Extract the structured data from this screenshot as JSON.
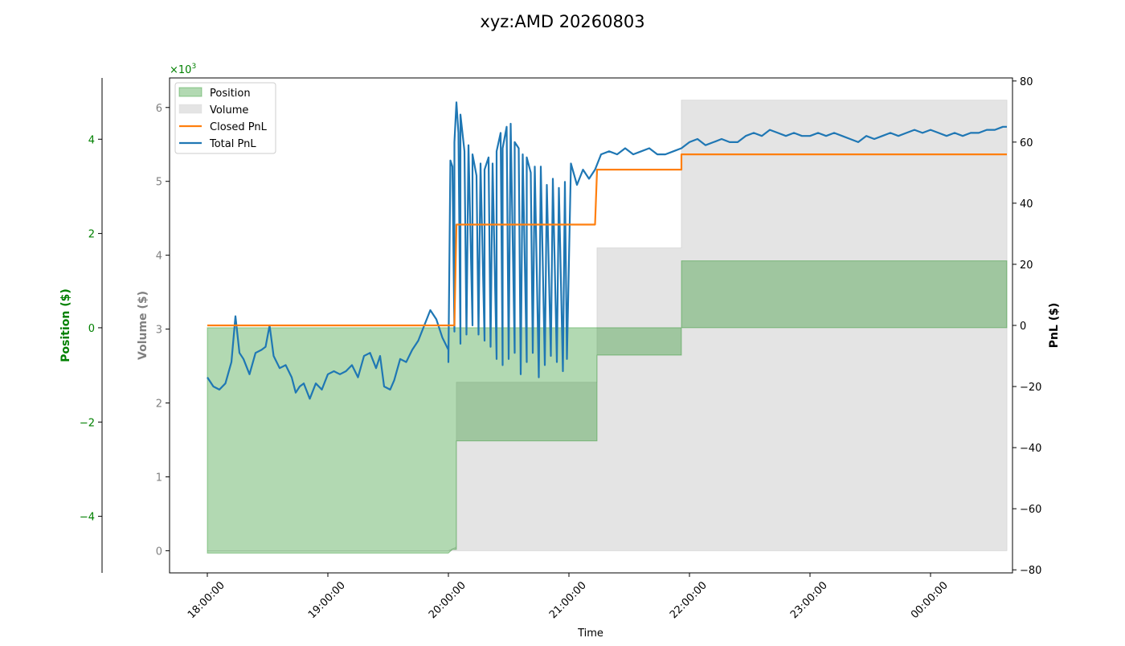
{
  "chart_data": {
    "type": "line",
    "title": "xyz:AMD 20260803",
    "xlabel": "Time",
    "x_ticks": [
      "18:00:00",
      "19:00:00",
      "20:00:00",
      "21:00:00",
      "22:00:00",
      "23:00:00",
      "00:00:00"
    ],
    "x_range": [
      "18:00",
      "00:38"
    ],
    "volume_axis": {
      "label": "Volume ($)",
      "exponent_label": "×10^3",
      "ylim": [
        -0.3,
        6.4
      ],
      "ticks": [
        0,
        1,
        2,
        3,
        4,
        5,
        6
      ],
      "color": "#808080"
    },
    "position_axis": {
      "label": "Position ($)",
      "exponent_label": "×10^3",
      "ylim": [
        -5.2,
        5.3
      ],
      "ticks": [
        -4,
        -2,
        0,
        2,
        4
      ],
      "color": "#008000"
    },
    "pnl_axis": {
      "label": "PnL ($)",
      "ylim": [
        -81,
        81
      ],
      "ticks": [
        -80,
        -60,
        -40,
        -20,
        0,
        20,
        40,
        60,
        80
      ],
      "color": "#000000"
    },
    "legend": {
      "placement": "top-left",
      "entries": [
        {
          "label": "Position",
          "kind": "patch",
          "color": "#b2d8b2"
        },
        {
          "label": "Volume",
          "kind": "patch",
          "color": "#e4e4e4"
        },
        {
          "label": "Closed PnL",
          "kind": "line",
          "color": "#ff7f0e"
        },
        {
          "label": "Total PnL",
          "kind": "line",
          "color": "#1f77b4"
        }
      ]
    },
    "series": [
      {
        "name": "Position",
        "axis": "position",
        "kind": "area",
        "color": "#b2d8b2",
        "points": [
          [
            "18:00",
            -4.78
          ],
          [
            "20:00",
            -4.78
          ],
          [
            "20:02",
            -4.7
          ],
          [
            "20:04",
            -4.7
          ],
          [
            "20:04",
            -2.4
          ],
          [
            "21:14",
            -2.4
          ],
          [
            "21:14",
            -0.58
          ],
          [
            "21:56",
            -0.58
          ],
          [
            "21:56",
            1.42
          ],
          [
            "00:38",
            1.42
          ]
        ]
      },
      {
        "name": "Volume",
        "axis": "volume",
        "kind": "area",
        "color": "#e4e4e4",
        "points": [
          [
            "18:00",
            0.0
          ],
          [
            "20:00",
            0.0
          ],
          [
            "20:04",
            0.05
          ],
          [
            "20:04",
            2.28
          ],
          [
            "21:14",
            2.28
          ],
          [
            "21:14",
            4.1
          ],
          [
            "21:56",
            4.1
          ],
          [
            "21:56",
            6.1
          ],
          [
            "00:38",
            6.1
          ]
        ]
      },
      {
        "name": "Closed PnL",
        "axis": "pnl",
        "kind": "step",
        "color": "#ff7f0e",
        "points": [
          [
            "18:00",
            0
          ],
          [
            "20:03",
            0
          ],
          [
            "20:04",
            33
          ],
          [
            "21:13",
            33
          ],
          [
            "21:14",
            51
          ],
          [
            "21:56",
            51
          ],
          [
            "21:56",
            56
          ],
          [
            "00:38",
            56
          ]
        ]
      },
      {
        "name": "Total PnL",
        "axis": "pnl",
        "kind": "line",
        "color": "#1f77b4",
        "points": [
          [
            "18:00",
            -17
          ],
          [
            "18:03",
            -20
          ],
          [
            "18:06",
            -21
          ],
          [
            "18:09",
            -19
          ],
          [
            "18:12",
            -12
          ],
          [
            "18:14",
            3
          ],
          [
            "18:16",
            -9
          ],
          [
            "18:18",
            -11
          ],
          [
            "18:21",
            -16
          ],
          [
            "18:24",
            -9
          ],
          [
            "18:27",
            -8
          ],
          [
            "18:29",
            -7
          ],
          [
            "18:31",
            0
          ],
          [
            "18:33",
            -10
          ],
          [
            "18:36",
            -14
          ],
          [
            "18:39",
            -13
          ],
          [
            "18:42",
            -17
          ],
          [
            "18:44",
            -22
          ],
          [
            "18:46",
            -20
          ],
          [
            "18:48",
            -19
          ],
          [
            "18:51",
            -24
          ],
          [
            "18:54",
            -19
          ],
          [
            "18:57",
            -21
          ],
          [
            "19:00",
            -16
          ],
          [
            "19:03",
            -15
          ],
          [
            "19:06",
            -16
          ],
          [
            "19:09",
            -15
          ],
          [
            "19:12",
            -13
          ],
          [
            "19:15",
            -17
          ],
          [
            "19:18",
            -10
          ],
          [
            "19:21",
            -9
          ],
          [
            "19:24",
            -14
          ],
          [
            "19:26",
            -10
          ],
          [
            "19:28",
            -20
          ],
          [
            "19:31",
            -21
          ],
          [
            "19:33",
            -18
          ],
          [
            "19:36",
            -11
          ],
          [
            "19:39",
            -12
          ],
          [
            "19:42",
            -8
          ],
          [
            "19:45",
            -5
          ],
          [
            "19:48",
            0
          ],
          [
            "19:51",
            5
          ],
          [
            "19:54",
            2
          ],
          [
            "19:57",
            -4
          ],
          [
            "20:00",
            -8
          ],
          [
            "20:03",
            -2
          ],
          [
            "20:06",
            -6
          ],
          [
            "20:09",
            -3
          ],
          [
            "20:12",
            0
          ],
          [
            "20:15",
            -3
          ],
          [
            "20:18",
            -5
          ],
          [
            "20:21",
            -7
          ],
          [
            "20:24",
            -11
          ],
          [
            "20:27",
            -13
          ],
          [
            "20:30",
            -11
          ],
          [
            "20:33",
            -9
          ],
          [
            "20:36",
            -16
          ],
          [
            "20:39",
            -12
          ],
          [
            "20:42",
            -9
          ],
          [
            "20:45",
            -17
          ],
          [
            "20:48",
            -13
          ],
          [
            "20:51",
            -10
          ],
          [
            "20:54",
            -12
          ],
          [
            "20:57",
            -15
          ],
          [
            "20:59",
            -11
          ],
          [
            "20:00",
            -12
          ],
          [
            "20:01",
            54
          ],
          [
            "20:02",
            52
          ],
          [
            "20:03",
            60
          ],
          [
            "20:04",
            73
          ],
          [
            "20:05",
            63
          ],
          [
            "20:06",
            69
          ],
          [
            "20:08",
            57
          ],
          [
            "20:10",
            59
          ],
          [
            "20:12",
            56
          ],
          [
            "20:14",
            49
          ],
          [
            "20:16",
            53
          ],
          [
            "20:18",
            51
          ],
          [
            "20:20",
            55
          ],
          [
            "20:22",
            53
          ],
          [
            "20:24",
            57
          ],
          [
            "20:26",
            63
          ],
          [
            "20:27",
            58
          ],
          [
            "20:29",
            65
          ],
          [
            "20:31",
            66
          ],
          [
            "20:33",
            60
          ],
          [
            "20:35",
            58
          ],
          [
            "20:37",
            56
          ],
          [
            "20:39",
            55
          ],
          [
            "20:41",
            50
          ],
          [
            "20:43",
            52
          ],
          [
            "20:46",
            52
          ],
          [
            "20:49",
            46
          ],
          [
            "20:52",
            48
          ],
          [
            "20:55",
            45
          ],
          [
            "20:58",
            47
          ],
          [
            "21:01",
            53
          ],
          [
            "21:04",
            46
          ],
          [
            "21:07",
            51
          ],
          [
            "21:10",
            48
          ],
          [
            "21:13",
            51
          ],
          [
            "21:16",
            56
          ],
          [
            "21:20",
            57
          ],
          [
            "21:24",
            56
          ],
          [
            "21:28",
            58
          ],
          [
            "21:32",
            56
          ],
          [
            "21:36",
            57
          ],
          [
            "21:40",
            58
          ],
          [
            "21:44",
            56
          ],
          [
            "21:48",
            56
          ],
          [
            "21:52",
            57
          ],
          [
            "21:56",
            58
          ],
          [
            "22:00",
            60
          ],
          [
            "22:04",
            61
          ],
          [
            "22:08",
            59
          ],
          [
            "22:12",
            60
          ],
          [
            "22:16",
            61
          ],
          [
            "22:20",
            60
          ],
          [
            "22:24",
            60
          ],
          [
            "22:28",
            62
          ],
          [
            "22:32",
            63
          ],
          [
            "22:36",
            62
          ],
          [
            "22:40",
            64
          ],
          [
            "22:44",
            63
          ],
          [
            "22:48",
            62
          ],
          [
            "22:52",
            63
          ],
          [
            "22:56",
            62
          ],
          [
            "23:00",
            62
          ],
          [
            "23:04",
            63
          ],
          [
            "23:08",
            62
          ],
          [
            "23:12",
            63
          ],
          [
            "23:16",
            62
          ],
          [
            "23:20",
            61
          ],
          [
            "23:24",
            60
          ],
          [
            "23:28",
            62
          ],
          [
            "23:32",
            61
          ],
          [
            "23:36",
            62
          ],
          [
            "23:40",
            63
          ],
          [
            "23:44",
            62
          ],
          [
            "23:48",
            63
          ],
          [
            "23:52",
            64
          ],
          [
            "23:56",
            63
          ],
          [
            "00:00",
            64
          ],
          [
            "00:04",
            63
          ],
          [
            "00:08",
            62
          ],
          [
            "00:12",
            63
          ],
          [
            "00:16",
            62
          ],
          [
            "00:20",
            63
          ],
          [
            "00:24",
            63
          ],
          [
            "00:28",
            64
          ],
          [
            "00:32",
            64
          ],
          [
            "00:36",
            65
          ],
          [
            "00:38",
            65
          ]
        ]
      }
    ]
  }
}
